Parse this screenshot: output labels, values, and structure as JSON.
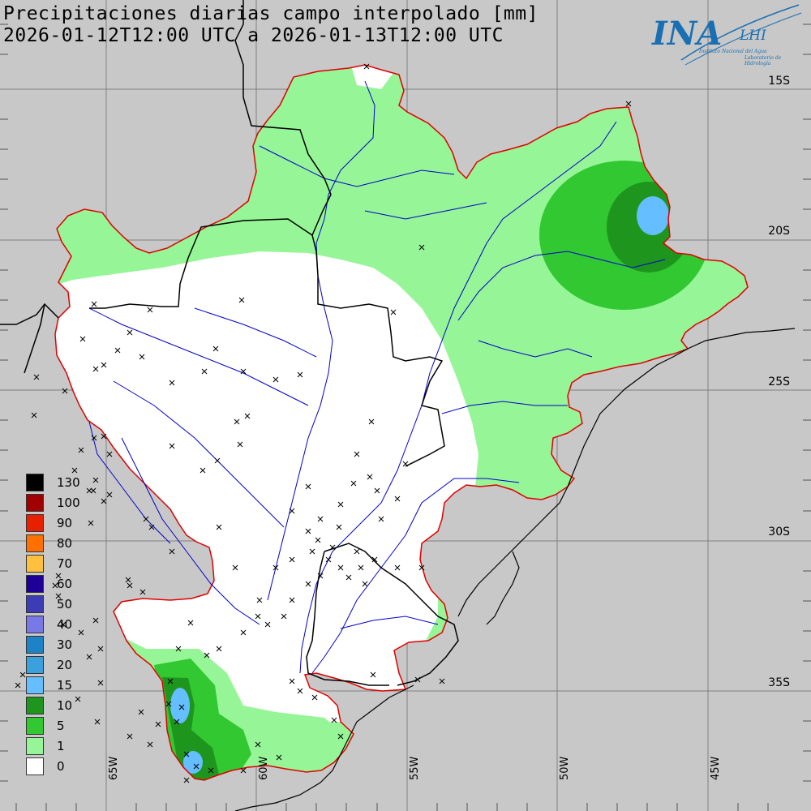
{
  "title": {
    "line1": "Precipitaciones diarias campo interpolado [mm]",
    "line2": "2026-01-12T12:00 UTC a 2026-01-13T12:00 UTC"
  },
  "logo": {
    "main": "INA",
    "secondary": "LHI",
    "subtitle1": "Instituto Nacional del Agua",
    "subtitle2": "Laboratorio de Hidrología",
    "color": "#1a6fb3"
  },
  "latitude_labels": [
    "15S",
    "20S",
    "25S",
    "30S",
    "35S"
  ],
  "longitude_labels": [
    "65W",
    "60W",
    "55W",
    "50W",
    "45W"
  ],
  "legend": [
    {
      "label": "130",
      "color": "#000000"
    },
    {
      "label": "100",
      "color": "#a00000"
    },
    {
      "label": "90",
      "color": "#e82000"
    },
    {
      "label": "80",
      "color": "#ff7000"
    },
    {
      "label": "70",
      "color": "#ffc040"
    },
    {
      "label": "60",
      "color": "#1e0096"
    },
    {
      "label": "50",
      "color": "#3c3cb4"
    },
    {
      "label": "40",
      "color": "#7878e6"
    },
    {
      "label": "30",
      "color": "#1e82c8"
    },
    {
      "label": "20",
      "color": "#3ca0dc"
    },
    {
      "label": "15",
      "color": "#64beff"
    },
    {
      "label": "10",
      "color": "#1e961e"
    },
    {
      "label": "5",
      "color": "#32c832"
    },
    {
      "label": "1",
      "color": "#96f596"
    },
    {
      "label": "0",
      "color": "#ffffff"
    }
  ],
  "colors": {
    "background": "#c8c8c8",
    "basin_outline": "#e00000",
    "rivers": "#0000cc",
    "borders": "#000000",
    "grid": "#7f7f7f"
  }
}
